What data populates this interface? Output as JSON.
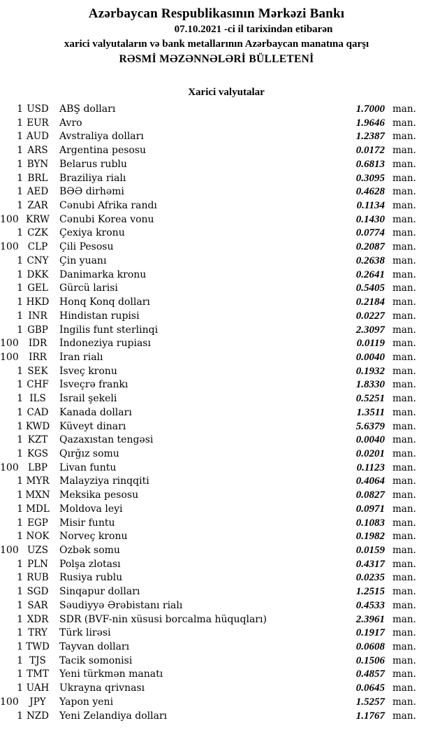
{
  "header": {
    "title": "Azərbaycan Respublikasının Mərkəzi Bankı",
    "date_line": "07.10.2021 -ci il tarixindən etibarən",
    "subtitle_line": "xarici valyutaların və bank metallarının Azərbaycan manatına qarşı",
    "bulletin_line": "RƏSMİ MƏZƏNNƏLƏRİ BÜLLETENİ"
  },
  "section": {
    "title": "Xarici valyutalar"
  },
  "unit_label": "man.",
  "colors": {
    "text": "#000000",
    "background": "#ffffff"
  },
  "rates": [
    {
      "qty": "1",
      "code": "USD",
      "name": "ABŞ dolları",
      "rate": "1.7000"
    },
    {
      "qty": "1",
      "code": "EUR",
      "name": "Avro",
      "rate": "1.9646"
    },
    {
      "qty": "1",
      "code": "AUD",
      "name": "Avstraliya dolları",
      "rate": "1.2387"
    },
    {
      "qty": "1",
      "code": "ARS",
      "name": "Argentina pesosu",
      "rate": "0.0172"
    },
    {
      "qty": "1",
      "code": "BYN",
      "name": "Belarus rublu",
      "rate": "0.6813"
    },
    {
      "qty": "1",
      "code": "BRL",
      "name": "Braziliya rialı",
      "rate": "0.3095"
    },
    {
      "qty": "1",
      "code": "AED",
      "name": "BƏƏ dirhəmi",
      "rate": "0.4628"
    },
    {
      "qty": "1",
      "code": "ZAR",
      "name": "Cənubi Afrika randı",
      "rate": "0.1134"
    },
    {
      "qty": "100",
      "code": "KRW",
      "name": "Cənubi Korea vonu",
      "rate": "0.1430"
    },
    {
      "qty": "1",
      "code": "CZK",
      "name": "Çexiya kronu",
      "rate": "0.0774"
    },
    {
      "qty": "100",
      "code": "CLP",
      "name": "Çili Pesosu",
      "rate": "0.2087"
    },
    {
      "qty": "1",
      "code": "CNY",
      "name": "Çin yuanı",
      "rate": "0.2638"
    },
    {
      "qty": "1",
      "code": "DKK",
      "name": "Danimarka kronu",
      "rate": "0.2641"
    },
    {
      "qty": "1",
      "code": "GEL",
      "name": "Gürcü larisi",
      "rate": "0.5405"
    },
    {
      "qty": "1",
      "code": "HKD",
      "name": "Honq Konq dolları",
      "rate": "0.2184"
    },
    {
      "qty": "1",
      "code": "INR",
      "name": "Hindistan rupisi",
      "rate": "0.0227"
    },
    {
      "qty": "1",
      "code": "GBP",
      "name": "İngilis funt sterlinqi",
      "rate": "2.3097"
    },
    {
      "qty": "100",
      "code": "IDR",
      "name": "İndoneziya rupiası",
      "rate": "0.0119"
    },
    {
      "qty": "100",
      "code": "IRR",
      "name": "İran rialı",
      "rate": "0.0040"
    },
    {
      "qty": "1",
      "code": "SEK",
      "name": "İsveç kronu",
      "rate": "0.1932"
    },
    {
      "qty": "1",
      "code": "CHF",
      "name": "İsveçrə frankı",
      "rate": "1.8330"
    },
    {
      "qty": "1",
      "code": "ILS",
      "name": "İsrail şekeli",
      "rate": "0.5251"
    },
    {
      "qty": "1",
      "code": "CAD",
      "name": "Kanada dolları",
      "rate": "1.3511"
    },
    {
      "qty": "1",
      "code": "KWD",
      "name": "Küveyt dinarı",
      "rate": "5.6379"
    },
    {
      "qty": "1",
      "code": "KZT",
      "name": "Qazaxıstan tengəsi",
      "rate": "0.0040"
    },
    {
      "qty": "1",
      "code": "KGS",
      "name": "Qırğız somu",
      "rate": "0.0201"
    },
    {
      "qty": "100",
      "code": "LBP",
      "name": "Livan funtu",
      "rate": "0.1123"
    },
    {
      "qty": "1",
      "code": "MYR",
      "name": "Malayziya rinqqiti",
      "rate": "0.4064"
    },
    {
      "qty": "1",
      "code": "MXN",
      "name": "Meksika pesosu",
      "rate": "0.0827"
    },
    {
      "qty": "1",
      "code": "MDL",
      "name": "Moldova leyi",
      "rate": "0.0971"
    },
    {
      "qty": "1",
      "code": "EGP",
      "name": "Misir funtu",
      "rate": "0.1083"
    },
    {
      "qty": "1",
      "code": "NOK",
      "name": "Norveç kronu",
      "rate": "0.1982"
    },
    {
      "qty": "100",
      "code": "UZS",
      "name": "Özbək somu",
      "rate": "0.0159"
    },
    {
      "qty": "1",
      "code": "PLN",
      "name": "Polşa zlotası",
      "rate": "0.4317"
    },
    {
      "qty": "1",
      "code": "RUB",
      "name": "Rusiya rublu",
      "rate": "0.0235"
    },
    {
      "qty": "1",
      "code": "SGD",
      "name": "Sinqapur dolları",
      "rate": "1.2515"
    },
    {
      "qty": "1",
      "code": "SAR",
      "name": "Səudiyyə Ərəbistanı rialı",
      "rate": "0.4533"
    },
    {
      "qty": "1",
      "code": "XDR",
      "name": "SDR (BVF-nin xüsusi borcalma hüquqları)",
      "rate": "2.3961"
    },
    {
      "qty": "1",
      "code": "TRY",
      "name": "Türk lirəsi",
      "rate": "0.1917"
    },
    {
      "qty": "1",
      "code": "TWD",
      "name": "Tayvan dolları",
      "rate": "0.0608"
    },
    {
      "qty": "1",
      "code": "TJS",
      "name": "Tacik somonisi",
      "rate": "0.1506"
    },
    {
      "qty": "1",
      "code": "TMT",
      "name": "Yeni türkmən manatı",
      "rate": "0.4857"
    },
    {
      "qty": "1",
      "code": "UAH",
      "name": "Ukrayna qrivnası",
      "rate": "0.0645"
    },
    {
      "qty": "100",
      "code": "JPY",
      "name": "Yapon yeni",
      "rate": "1.5257"
    },
    {
      "qty": "1",
      "code": "NZD",
      "name": "Yeni Zelandiya dolları",
      "rate": "1.1767"
    }
  ]
}
